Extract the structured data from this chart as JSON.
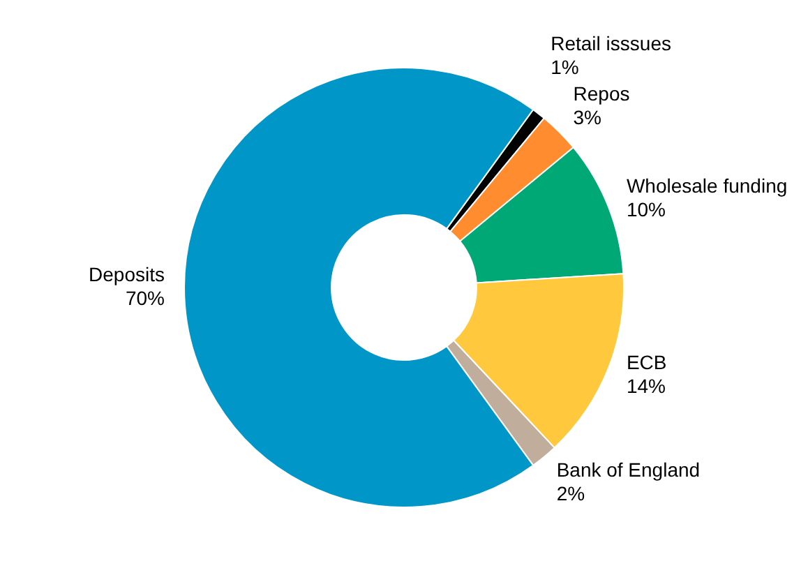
{
  "chart_data": {
    "type": "donut",
    "categories": [
      "Retail isssues",
      "Repos",
      "Wholesale funding",
      "ECB",
      "Bank of England",
      "Deposits"
    ],
    "values": [
      1,
      3,
      10,
      14,
      2,
      70
    ],
    "value_labels": [
      "1%",
      "3%",
      "10%",
      "14%",
      "2%",
      "70%"
    ],
    "colors": [
      "#000000",
      "#ff8c2e",
      "#00a875",
      "#ffc83d",
      "#c0ad9b",
      "#0097c8"
    ],
    "legend": false
  }
}
